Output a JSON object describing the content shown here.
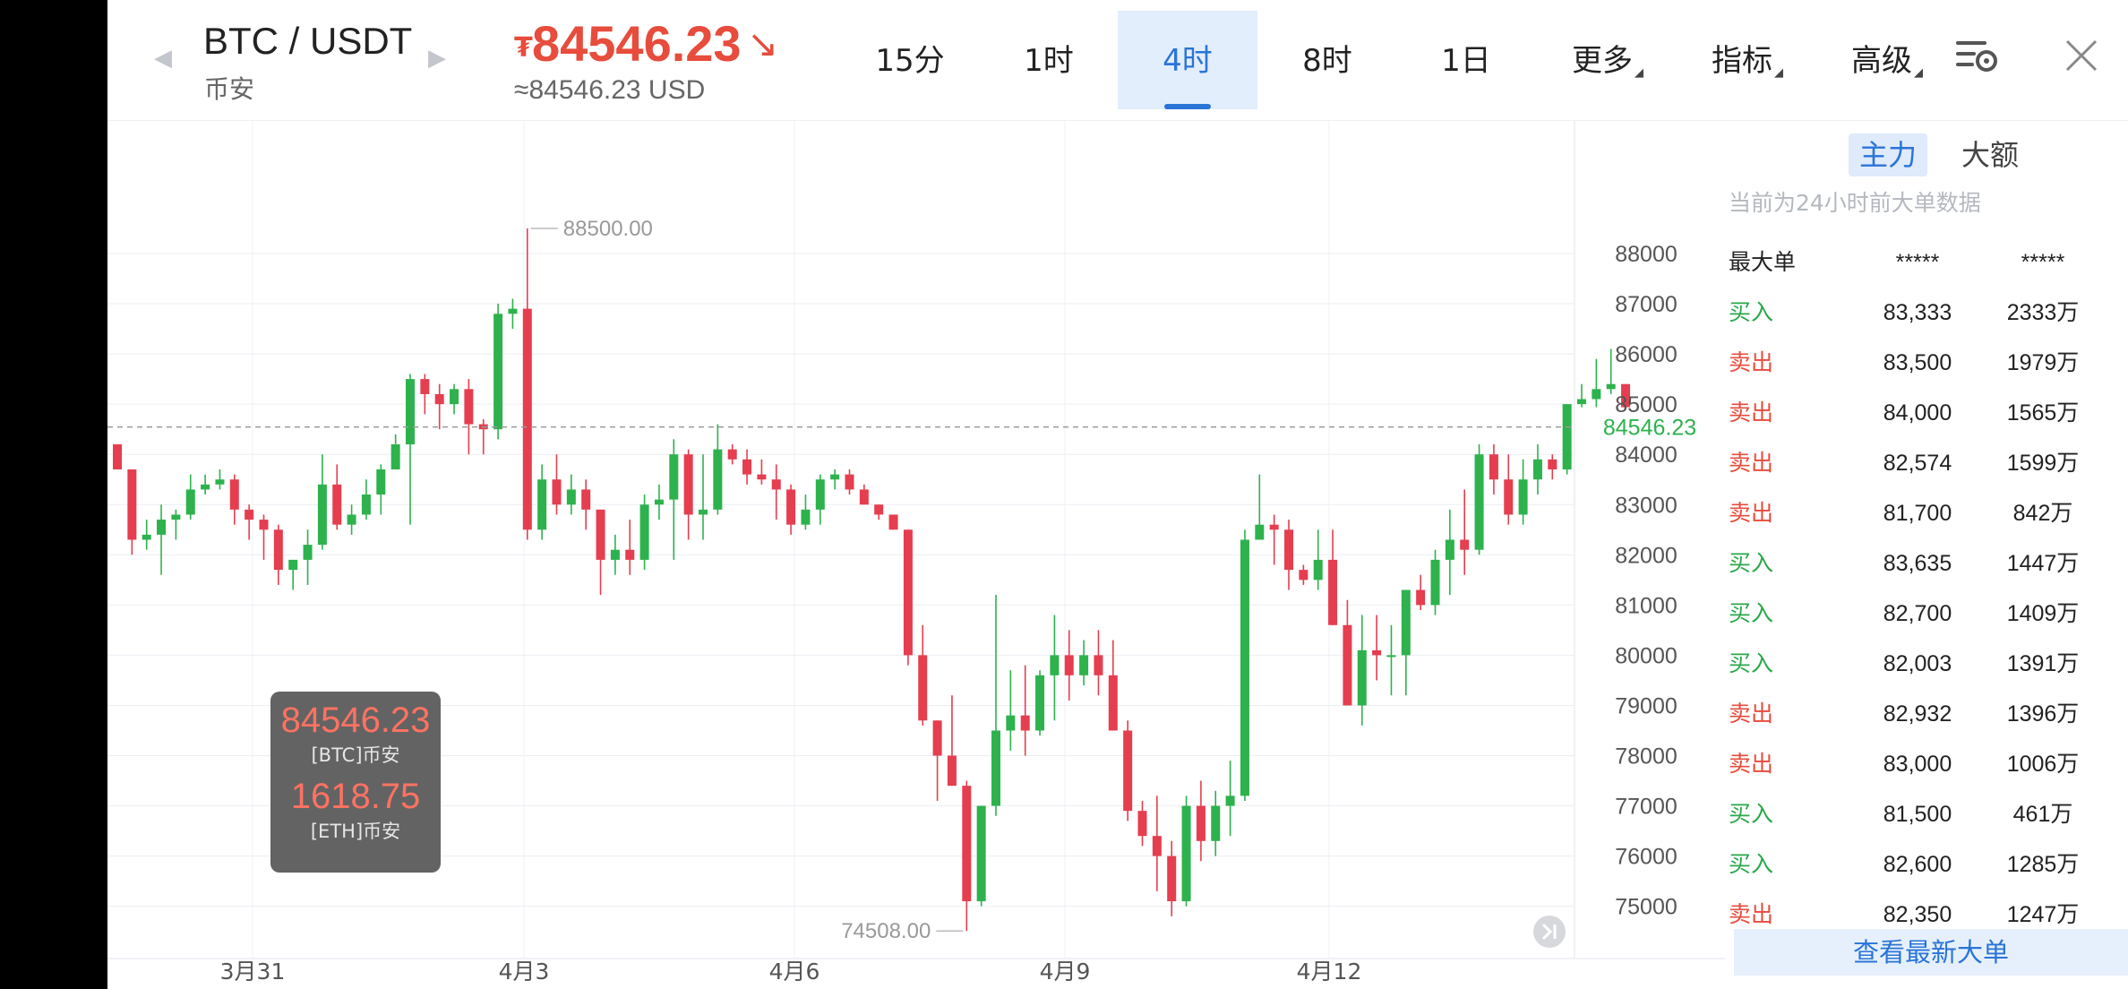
{
  "header": {
    "pair": "BTC / USDT",
    "exchange": "币安",
    "currency_symbol": "₮",
    "price": "84546.23",
    "trend_icon": "arrow-down-right-icon",
    "usd_price": "≈84546.23 USD",
    "tabs": [
      "15分",
      "1时",
      "4时",
      "8时",
      "1日",
      "更多",
      "指标",
      "高级"
    ],
    "active_tab": "4时",
    "icons": [
      "settings-list-icon",
      "close-icon"
    ]
  },
  "tooltip": {
    "btc_value": "84546.23",
    "btc_label": "[BTC]币安",
    "eth_value": "1618.75",
    "eth_label": "[ETH]币安"
  },
  "chart_data": {
    "type": "candlestick",
    "title": "",
    "ylim": [
      74000,
      89000
    ],
    "y_ticks": [
      "88000",
      "87000",
      "86000",
      "85000",
      "84000",
      "83000",
      "82000",
      "81000",
      "80000",
      "79000",
      "78000",
      "77000",
      "76000",
      "75000"
    ],
    "x_tick_labels": [
      "3月31",
      "4月3",
      "4月6",
      "4月9",
      "4月12"
    ],
    "x_tick_index": [
      5,
      18,
      31,
      44,
      57
    ],
    "current_price_label": "84546.23",
    "high_label": "88500.00",
    "low_label": "74508.00",
    "colors": {
      "up": "#2db24d",
      "down": "#e53e4f",
      "current": "#2db24d"
    },
    "candles": [
      [
        84200,
        84100,
        83700,
        83700
      ],
      [
        83700,
        83700,
        82000,
        82300
      ],
      [
        82300,
        82700,
        82100,
        82400
      ],
      [
        82400,
        83000,
        81600,
        82700
      ],
      [
        82700,
        82900,
        82300,
        82800
      ],
      [
        82800,
        83600,
        82700,
        83300
      ],
      [
        83300,
        83600,
        83200,
        83400
      ],
      [
        83400,
        83700,
        83300,
        83500
      ],
      [
        83500,
        83600,
        82600,
        82900
      ],
      [
        82900,
        83000,
        82300,
        82700
      ],
      [
        82700,
        82800,
        81900,
        82500
      ],
      [
        82500,
        82600,
        81400,
        81700
      ],
      [
        81700,
        81900,
        81300,
        81900
      ],
      [
        81900,
        82500,
        81400,
        82200
      ],
      [
        82200,
        84000,
        82100,
        83400
      ],
      [
        83400,
        83800,
        82500,
        82600
      ],
      [
        82600,
        83000,
        82400,
        82800
      ],
      [
        82800,
        83500,
        82700,
        83200
      ],
      [
        83200,
        83800,
        82800,
        83700
      ],
      [
        83700,
        84400,
        83700,
        84200
      ],
      [
        84200,
        85600,
        82600,
        85500
      ],
      [
        85500,
        85600,
        84800,
        85200
      ],
      [
        85200,
        85400,
        84500,
        85000
      ],
      [
        85000,
        85400,
        84800,
        85300
      ],
      [
        85300,
        85500,
        84000,
        84600
      ],
      [
        84600,
        84700,
        84000,
        84500
      ],
      [
        84500,
        87000,
        84300,
        86800
      ],
      [
        86800,
        87100,
        86500,
        86900
      ],
      [
        86900,
        88500,
        82300,
        82500
      ],
      [
        82500,
        83800,
        82300,
        83500
      ],
      [
        83500,
        84000,
        82800,
        83000
      ],
      [
        83000,
        83600,
        82800,
        83300
      ],
      [
        83300,
        83500,
        82500,
        82900
      ],
      [
        82900,
        82900,
        81200,
        81900
      ],
      [
        81900,
        82400,
        81600,
        82100
      ],
      [
        82100,
        82700,
        81600,
        81900
      ],
      [
        81900,
        83200,
        81700,
        83000
      ],
      [
        83000,
        83400,
        82700,
        83100
      ],
      [
        83100,
        84300,
        81900,
        84000
      ],
      [
        84000,
        84100,
        82300,
        82800
      ],
      [
        82800,
        84000,
        82300,
        82900
      ],
      [
        82900,
        84600,
        82800,
        84100
      ],
      [
        84100,
        84200,
        83800,
        83900
      ],
      [
        83900,
        84100,
        83400,
        83600
      ],
      [
        83600,
        83900,
        83400,
        83500
      ],
      [
        83500,
        83800,
        82700,
        83300
      ],
      [
        83300,
        83400,
        82400,
        82600
      ],
      [
        82600,
        83200,
        82500,
        82900
      ],
      [
        82900,
        83600,
        82600,
        83500
      ],
      [
        83500,
        83700,
        83300,
        83600
      ],
      [
        83600,
        83700,
        83200,
        83300
      ],
      [
        83300,
        83400,
        83000,
        83000
      ],
      [
        83000,
        83000,
        82700,
        82800
      ],
      [
        82800,
        82800,
        82500,
        82500
      ],
      [
        82500,
        82500,
        79800,
        80000
      ],
      [
        80000,
        80600,
        78600,
        78700
      ],
      [
        78700,
        78700,
        77100,
        78000
      ],
      [
        78000,
        79200,
        77400,
        77400
      ],
      [
        77400,
        77500,
        74508,
        75100
      ],
      [
        75100,
        77000,
        75000,
        77000
      ],
      [
        77000,
        81200,
        76800,
        78500
      ],
      [
        78500,
        79700,
        78100,
        78800
      ],
      [
        78800,
        79800,
        78000,
        78500
      ],
      [
        78500,
        79700,
        78400,
        79600
      ],
      [
        79600,
        80800,
        78700,
        80000
      ],
      [
        80000,
        80500,
        79100,
        79600
      ],
      [
        79600,
        80300,
        79400,
        80000
      ],
      [
        80000,
        80500,
        79200,
        79600
      ],
      [
        79600,
        80300,
        78500,
        78500
      ],
      [
        78500,
        78700,
        76700,
        76900
      ],
      [
        76900,
        77100,
        76200,
        76400
      ],
      [
        76400,
        77200,
        75300,
        76000
      ],
      [
        76000,
        76300,
        74800,
        75100
      ],
      [
        75100,
        77200,
        75000,
        77000
      ],
      [
        77000,
        77500,
        75900,
        76300
      ],
      [
        76300,
        77300,
        76000,
        77000
      ],
      [
        77000,
        77900,
        76400,
        77200
      ],
      [
        77200,
        82500,
        77100,
        82300
      ],
      [
        82300,
        83600,
        82300,
        82600
      ],
      [
        82600,
        82800,
        81800,
        82500
      ],
      [
        82500,
        82700,
        81300,
        81700
      ],
      [
        81700,
        81800,
        81400,
        81500
      ],
      [
        81500,
        82500,
        81300,
        81900
      ],
      [
        81900,
        82500,
        80600,
        80600
      ],
      [
        80600,
        81100,
        79000,
        79000
      ],
      [
        79000,
        80800,
        78600,
        80100
      ],
      [
        80100,
        80800,
        79500,
        80000
      ],
      [
        80000,
        80600,
        79200,
        80000
      ],
      [
        80000,
        81300,
        79200,
        81300
      ],
      [
        81300,
        81600,
        80900,
        81000
      ],
      [
        81000,
        82100,
        80800,
        81900
      ],
      [
        81900,
        82900,
        81200,
        82300
      ],
      [
        82300,
        83300,
        81600,
        82100
      ],
      [
        82100,
        84200,
        82000,
        84000
      ],
      [
        84000,
        84200,
        83200,
        83500
      ],
      [
        83500,
        84000,
        82600,
        82800
      ],
      [
        82800,
        83900,
        82600,
        83500
      ],
      [
        83500,
        84200,
        83200,
        83900
      ],
      [
        83900,
        84000,
        83500,
        83700
      ],
      [
        83700,
        85000,
        83600,
        85000
      ],
      [
        85000,
        85400,
        84700,
        85100
      ],
      [
        85100,
        85900,
        84800,
        85300
      ],
      [
        85300,
        86100,
        85200,
        85400
      ],
      [
        85400,
        85400,
        84500,
        84500
      ],
      [
        84500,
        84700,
        84300,
        84546
      ]
    ]
  },
  "panel": {
    "tabs": [
      "主力",
      "大额"
    ],
    "active_tab": "主力",
    "note": "当前为24小时前大单数据",
    "header": {
      "label": "最大单",
      "col2": "*****",
      "col3": "*****"
    },
    "rows": [
      {
        "side": "买入",
        "price": "83,333",
        "amount": "2333万"
      },
      {
        "side": "卖出",
        "price": "83,500",
        "amount": "1979万"
      },
      {
        "side": "卖出",
        "price": "84,000",
        "amount": "1565万"
      },
      {
        "side": "卖出",
        "price": "82,574",
        "amount": "1599万"
      },
      {
        "side": "卖出",
        "price": "81,700",
        "amount": "842万"
      },
      {
        "side": "买入",
        "price": "83,635",
        "amount": "1447万"
      },
      {
        "side": "买入",
        "price": "82,700",
        "amount": "1409万"
      },
      {
        "side": "买入",
        "price": "82,003",
        "amount": "1391万"
      },
      {
        "side": "卖出",
        "price": "82,932",
        "amount": "1396万"
      },
      {
        "side": "卖出",
        "price": "83,000",
        "amount": "1006万"
      },
      {
        "side": "买入",
        "price": "81,500",
        "amount": "461万"
      },
      {
        "side": "买入",
        "price": "82,600",
        "amount": "1285万"
      },
      {
        "side": "卖出",
        "price": "82,350",
        "amount": "1247万"
      }
    ],
    "more_button": "查看最新大单"
  }
}
